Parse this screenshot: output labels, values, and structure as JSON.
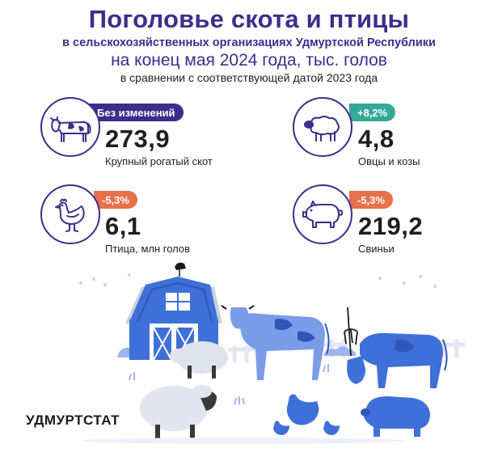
{
  "header": {
    "title": "Поголовье скота и птицы",
    "subtitle_org": "в сельскохозяйственных организациях Удмуртской Республики",
    "subtitle_date": "на конец мая 2024 года, тыс. голов",
    "subtitle_compare": "в сравнении с соответствующей датой 2023 года"
  },
  "cards": {
    "cattle": {
      "badge": "Без изменений",
      "value": "273,9",
      "label": "Крупный рогатый скот",
      "icon": "cow-icon"
    },
    "sheep": {
      "badge": "+8,2%",
      "value": "4,8",
      "label": "Овцы и козы",
      "icon": "sheep-icon"
    },
    "poultry": {
      "badge": "-5,3%",
      "value": "6,1",
      "label": "Птица, млн голов",
      "icon": "hen-icon"
    },
    "pigs": {
      "badge": "-5,3%",
      "value": "219,2",
      "label": "Свиньи",
      "icon": "pig-icon"
    }
  },
  "colors": {
    "primary": "#3a2f8c",
    "teal": "#36a89a",
    "orange": "#e8704a",
    "barn": "#3f6fd8"
  },
  "footer": {
    "brand": "УДМУРТСТАТ"
  }
}
